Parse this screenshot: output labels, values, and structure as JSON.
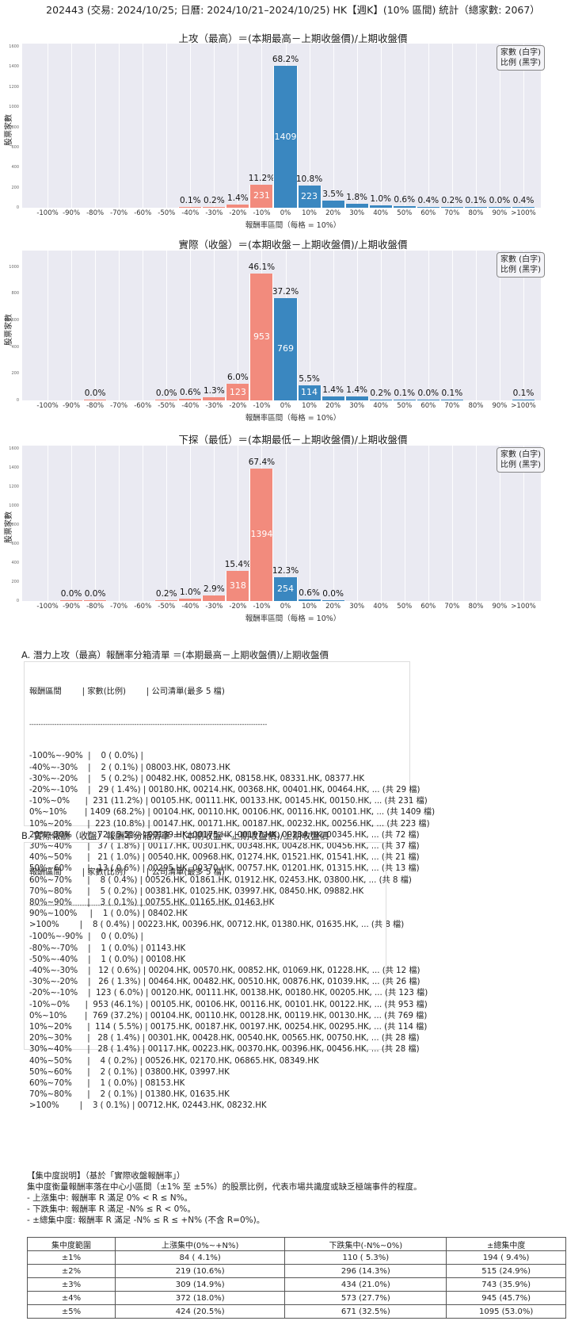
{
  "title": "202443 (交易: 2024/10/25; 日曆: 2024/10/21–2024/10/25) HK【週K】(10% 區間) 統計（總家數: 2067）",
  "legend": {
    "line1": "家數 (白字)",
    "line2": "比例 (黑字)"
  },
  "axis": {
    "ylabel": "股票家數",
    "xlabel": "報酬率區間（每格 = 10%）"
  },
  "chart_data": [
    {
      "type": "bar",
      "title": "上攻（最高）＝(本期最高－上期收盤價)/上期收盤價",
      "xlabel": "報酬率區間（每格 = 10%）",
      "ylabel": "股票家數",
      "ylim": [
        0,
        1600
      ],
      "yticks": [
        0,
        200,
        400,
        600,
        800,
        1000,
        1200,
        1400,
        1600
      ],
      "categories": [
        "-100%",
        "-90%",
        "-80%",
        "-70%",
        "-60%",
        "-50%",
        "-40%",
        "-30%",
        "-20%",
        "-10%",
        "0%",
        "10%",
        "20%",
        "30%",
        "40%",
        "50%",
        "60%",
        "70%",
        "80%",
        "90%",
        ">100%"
      ],
      "values": [
        0,
        0,
        0,
        0,
        0,
        0,
        2,
        5,
        29,
        231,
        1409,
        223,
        72,
        37,
        21,
        13,
        8,
        5,
        3,
        1,
        8
      ],
      "pct_labels": [
        "",
        "",
        "",
        "",
        "",
        "",
        "0.1%",
        "0.2%",
        "1.4%",
        "11.2%",
        "68.2%",
        "10.8%",
        "3.5%",
        "1.8%",
        "1.0%",
        "0.6%",
        "0.4%",
        "0.2%",
        "0.1%",
        "0.0%",
        "0.4%"
      ],
      "colors": {
        "negative": "#f28b7d",
        "positive": "#3a87c0"
      },
      "grid": true,
      "legend_position": "top-right"
    },
    {
      "type": "bar",
      "title": "實際（收盤）＝(本期收盤－上期收盤價)/上期收盤價",
      "xlabel": "報酬率區間（每格 = 10%）",
      "ylabel": "股票家數",
      "ylim": [
        0,
        1100
      ],
      "yticks": [
        0,
        200,
        400,
        600,
        800,
        1000
      ],
      "categories": [
        "-100%",
        "-90%",
        "-80%",
        "-70%",
        "-60%",
        "-50%",
        "-40%",
        "-30%",
        "-20%",
        "-10%",
        "0%",
        "10%",
        "20%",
        "30%",
        "40%",
        "50%",
        "60%",
        "70%",
        "80%",
        "90%",
        ">100%"
      ],
      "values": [
        0,
        0,
        1,
        0,
        0,
        1,
        12,
        26,
        123,
        953,
        769,
        114,
        28,
        28,
        4,
        2,
        1,
        2,
        0,
        0,
        3
      ],
      "pct_labels": [
        "",
        "",
        "0.0%",
        "",
        "",
        "0.0%",
        "0.6%",
        "1.3%",
        "6.0%",
        "46.1%",
        "37.2%",
        "5.5%",
        "1.4%",
        "1.4%",
        "0.2%",
        "0.1%",
        "0.0%",
        "0.1%",
        "",
        "",
        "0.1%"
      ],
      "colors": {
        "negative": "#f28b7d",
        "positive": "#3a87c0"
      },
      "grid": true,
      "legend_position": "top-right"
    },
    {
      "type": "bar",
      "title": "下探（最低）＝(本期最低－上期收盤價)/上期收盤價",
      "xlabel": "報酬率區間（每格 = 10%）",
      "ylabel": "股票家數",
      "ylim": [
        0,
        1600
      ],
      "yticks": [
        0,
        200,
        400,
        600,
        800,
        1000,
        1200,
        1400,
        1600
      ],
      "categories": [
        "-100%",
        "-90%",
        "-80%",
        "-70%",
        "-60%",
        "-50%",
        "-40%",
        "-30%",
        "-20%",
        "-10%",
        "0%",
        "10%",
        "20%",
        "30%",
        "40%",
        "50%",
        "60%",
        "70%",
        "80%",
        "90%",
        ">100%"
      ],
      "values": [
        0,
        1,
        1,
        0,
        0,
        4,
        21,
        60,
        318,
        1394,
        254,
        13,
        1,
        0,
        0,
        0,
        0,
        0,
        0,
        0,
        0
      ],
      "pct_labels": [
        "",
        "0.0%",
        "0.0%",
        "",
        "",
        "0.2%",
        "1.0%",
        "2.9%",
        "15.4%",
        "67.4%",
        "12.3%",
        "0.6%",
        "0.0%",
        "",
        "",
        "",
        "",
        "",
        "",
        "",
        ""
      ],
      "colors": {
        "negative": "#f28b7d",
        "positive": "#3a87c0"
      },
      "grid": true,
      "legend_position": "top-right"
    }
  ],
  "listA": {
    "title": "A. 潛力上攻（最高）報酬率分箱清單 ＝(本期最高－上期收盤價)/上期收盤價",
    "header": "報酬區間        | 家數(比例)        | 公司清單(最多 5 檔)",
    "divider": "--------------------------------------------------------------------------------------------------------",
    "rows": [
      "-100%~-90%  |    0 ( 0.0%) |",
      "-40%~-30%    |    2 ( 0.1%) | 08003.HK, 08073.HK",
      "-30%~-20%    |    5 ( 0.2%) | 00482.HK, 00852.HK, 08158.HK, 08331.HK, 08377.HK",
      "-20%~-10%    |   29 ( 1.4%) | 00180.HK, 00214.HK, 00368.HK, 00401.HK, 00464.HK, ... (共 29 檔)",
      "-10%~0%      |  231 (11.2%) | 00105.HK, 00111.HK, 00133.HK, 00145.HK, 00150.HK, ... (共 231 檔)",
      "0%~10%       | 1409 (68.2%) | 00104.HK, 00110.HK, 00106.HK, 00116.HK, 00101.HK, ... (共 1409 檔)",
      "10%~20%      |  223 (10.8%) | 00147.HK, 00171.HK, 00187.HK, 00232.HK, 00256.HK, ... (共 223 檔)",
      "20%~30%      |   72 ( 3.5%) | 00139.HK, 00175.HK, 00197.HK, 00234.HK, 00345.HK, ... (共 72 檔)",
      "30%~40%      |   37 ( 1.8%) | 00117.HK, 00301.HK, 00348.HK, 00428.HK, 00456.HK, ... (共 37 檔)",
      "40%~50%      |   21 ( 1.0%) | 00540.HK, 00968.HK, 01274.HK, 01521.HK, 01541.HK, ... (共 21 檔)",
      "50%~60%      |   13 ( 0.6%) | 00295.HK, 00370.HK, 00757.HK, 01201.HK, 01315.HK, ... (共 13 檔)",
      "60%~70%      |    8 ( 0.4%) | 00526.HK, 01861.HK, 01912.HK, 02453.HK, 03800.HK, ... (共 8 檔)",
      "70%~80%      |    5 ( 0.2%) | 00381.HK, 01025.HK, 03997.HK, 08450.HK, 09882.HK",
      "80%~90%      |    3 ( 0.1%) | 00755.HK, 01165.HK, 01463.HK",
      "90%~100%     |    1 ( 0.0%) | 08402.HK",
      ">100%        |    8 ( 0.4%) | 00223.HK, 00396.HK, 00712.HK, 01380.HK, 01635.HK, ... (共 8 檔)"
    ]
  },
  "listB": {
    "title": "B. 實際報酬（收盤）報酬率分箱清單 ＝(本期收盤－上期收盤價)/上期收盤價",
    "header": "報酬區間        | 家數(比例)        | 公司清單(最多 5 檔)",
    "divider": "--------------------------------------------------------------------------------------------------------",
    "rows": [
      "-100%~-90%  |    0 ( 0.0%) |",
      "-80%~-70%    |    1 ( 0.0%) | 01143.HK",
      "-50%~-40%    |    1 ( 0.0%) | 00108.HK",
      "-40%~-30%    |   12 ( 0.6%) | 00204.HK, 00570.HK, 00852.HK, 01069.HK, 01228.HK, ... (共 12 檔)",
      "-30%~-20%    |   26 ( 1.3%) | 00464.HK, 00482.HK, 00510.HK, 00876.HK, 01039.HK, ... (共 26 檔)",
      "-20%~-10%    |  123 ( 6.0%) | 00120.HK, 00111.HK, 00138.HK, 00180.HK, 00205.HK, ... (共 123 檔)",
      "-10%~0%      |  953 (46.1%) | 00105.HK, 00106.HK, 00116.HK, 00101.HK, 00122.HK, ... (共 953 檔)",
      "0%~10%       |  769 (37.2%) | 00104.HK, 00110.HK, 00128.HK, 00119.HK, 00130.HK, ... (共 769 檔)",
      "10%~20%      |  114 ( 5.5%) | 00175.HK, 00187.HK, 00197.HK, 00254.HK, 00295.HK, ... (共 114 檔)",
      "20%~30%      |   28 ( 1.4%) | 00301.HK, 00428.HK, 00540.HK, 00565.HK, 00750.HK, ... (共 28 檔)",
      "30%~40%      |   28 ( 1.4%) | 00117.HK, 00223.HK, 00370.HK, 00396.HK, 00456.HK, ... (共 28 檔)",
      "40%~50%      |    4 ( 0.2%) | 00526.HK, 02170.HK, 06865.HK, 08349.HK",
      "50%~60%      |    2 ( 0.1%) | 03800.HK, 03997.HK",
      "60%~70%      |    1 ( 0.0%) | 08153.HK",
      "70%~80%      |    2 ( 0.1%) | 01380.HK, 01635.HK",
      ">100%        |    3 ( 0.1%) | 00712.HK, 02443.HK, 08232.HK"
    ]
  },
  "concentration": {
    "heading": "【集中度說明】（基於「實際收盤報酬率」）",
    "desc": "集中度衡量報酬率落在中心小區間（±1% 至 ±5%）的股票比例，代表市場共識度或缺乏極端事件的程度。",
    "bullets": [
      " - 上漲集中: 報酬率 R 滿足 0% < R ≤ N%。",
      " - 下跌集中: 報酬率 R 滿足 -N% ≤ R < 0%。",
      " - ±總集中度: 報酬率 R 滿足 -N% ≤ R ≤ +N% (不含 R=0%)。"
    ],
    "table": {
      "headers": [
        "集中度範圍",
        "上漲集中(0%~+N%)",
        "下跌集中(-N%~0%)",
        "±總集中度"
      ],
      "rows": [
        [
          "±1%",
          "84 ( 4.1%)",
          "110 ( 5.3%)",
          "194 ( 9.4%)"
        ],
        [
          "±2%",
          "219 (10.6%)",
          "296 (14.3%)",
          "515 (24.9%)"
        ],
        [
          "±3%",
          "309 (14.9%)",
          "434 (21.0%)",
          "743 (35.9%)"
        ],
        [
          "±4%",
          "372 (18.0%)",
          "573 (27.7%)",
          "945 (45.7%)"
        ],
        [
          "±5%",
          "424 (20.5%)",
          "671 (32.5%)",
          "1095 (53.0%)"
        ]
      ]
    }
  }
}
